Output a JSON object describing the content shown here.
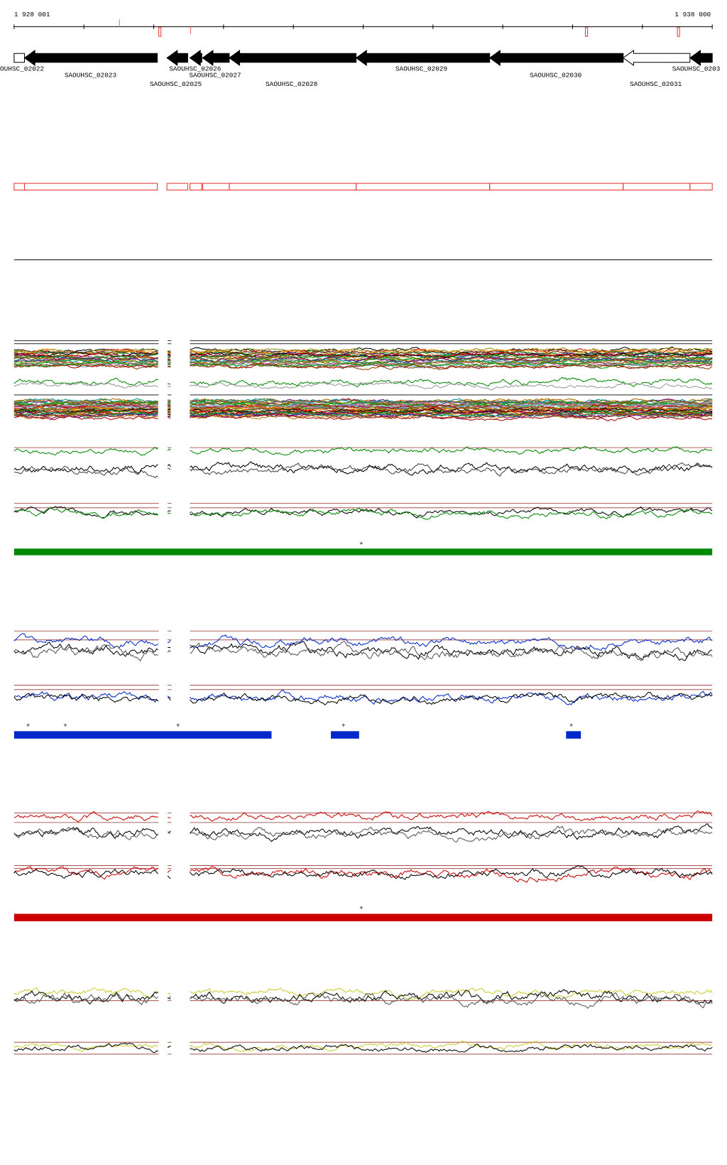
{
  "ruler": {
    "start": "1 928 001",
    "end": "1 938 000"
  },
  "genes": [
    {
      "label": "OUHSC_02022"
    },
    {
      "label": "SAOUHSC_02023"
    },
    {
      "label": "SAOUHSC_02025"
    },
    {
      "label": "SAOUHSC_02026"
    },
    {
      "label": "SAOUHSC_02027"
    },
    {
      "label": "SAOUHSC_02028"
    },
    {
      "label": "SAOUHSC_02029"
    },
    {
      "label": "SAOUHSC_02030"
    },
    {
      "label": "SAOUHSC_02031"
    },
    {
      "label": "SAOUHSC_0203"
    }
  ],
  "plus_marks": [
    "+",
    "+",
    "+",
    "+",
    "+",
    "+",
    "+"
  ]
}
